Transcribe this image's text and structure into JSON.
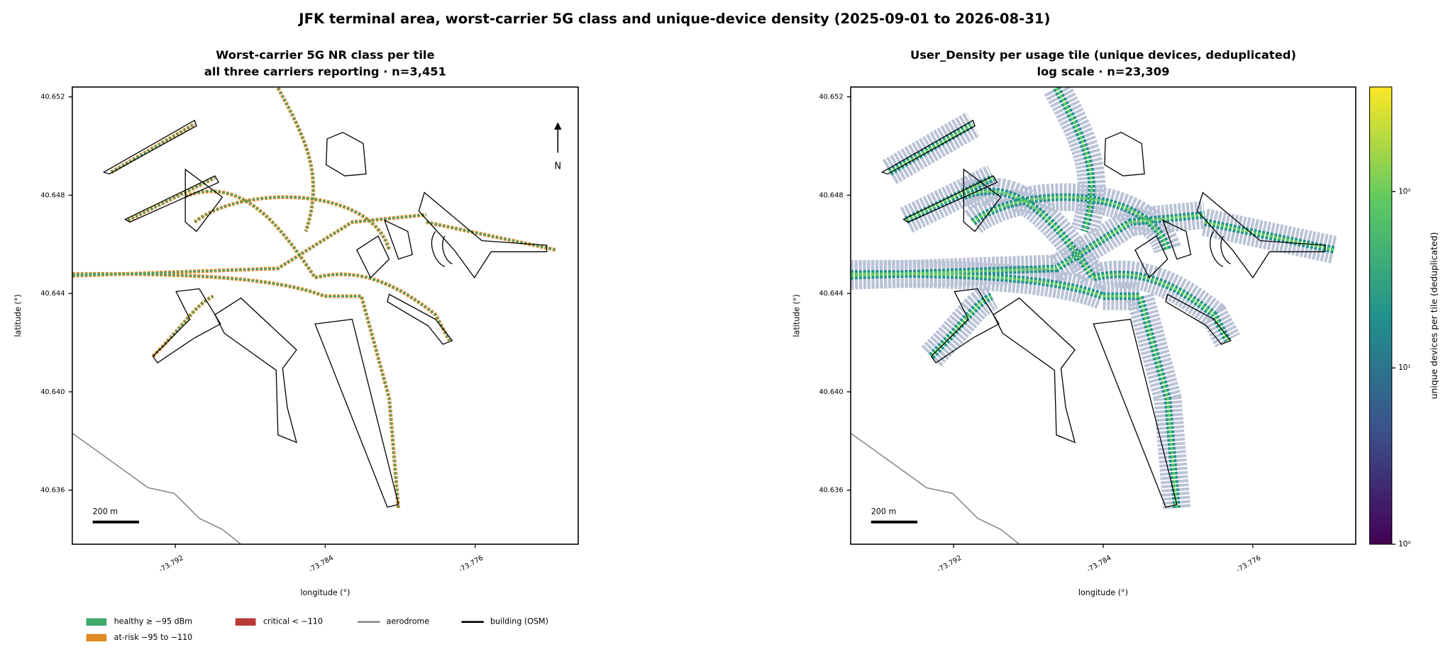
{
  "title": "JFK terminal area, worst-carrier 5G class and unique-device density (2025-09-01 to 2026-08-31)",
  "chart_data": [
    {
      "type": "map",
      "title": "Worst-carrier 5G NR class per tile",
      "subtitle": "all three carriers reporting · n=3,451",
      "xlabel": "longitude (°)",
      "ylabel": "latitude (°)",
      "xlim": [
        -73.7975,
        -73.7705
      ],
      "ylim": [
        40.6338,
        40.6524
      ],
      "xticks": [
        -73.792,
        -73.784,
        -73.776
      ],
      "yticks": [
        40.636,
        {
          "value": 40.64,
          "label": "40.640"
        },
        40.644,
        40.648,
        40.652
      ],
      "scale_bar": "200 m",
      "north": "N",
      "series": [
        {
          "name": "healthy ≥ −95 dBm",
          "color": "#3fa86b"
        },
        {
          "name": "at-risk −95 to −110",
          "color": "#e08a22"
        },
        {
          "name": "critical < −110",
          "color": "#b83a35"
        }
      ],
      "lines": [
        {
          "name": "aerodrome",
          "color": "#888888"
        },
        {
          "name": "building (OSM)",
          "color": "#000000"
        }
      ]
    },
    {
      "type": "map",
      "title": "User_Density per usage tile (unique devices, deduplicated)",
      "subtitle": "log scale · n=23,309",
      "xlabel": "longitude (°)",
      "ylabel": "latitude (°)",
      "xlim": [
        -73.7975,
        -73.7705
      ],
      "ylim": [
        40.6338,
        40.6524
      ],
      "xticks": [
        -73.792,
        -73.784,
        -73.776
      ],
      "yticks": [
        40.636,
        {
          "value": 40.64,
          "label": "40.640"
        },
        40.644,
        40.648,
        40.652
      ],
      "scale_bar": "200 m",
      "colorbar": {
        "label": "unique devices per tile (deduplicated)",
        "log": true,
        "lim": [
          1,
          392
        ],
        "ticks": [
          {
            "value": 1,
            "label": "10⁰"
          },
          {
            "value": 10,
            "label": "10¹"
          },
          {
            "value": 100,
            "label": "10²"
          }
        ],
        "colormap": [
          "#440154",
          "#3b528b",
          "#21918c",
          "#5ec962",
          "#fde725"
        ]
      }
    }
  ]
}
